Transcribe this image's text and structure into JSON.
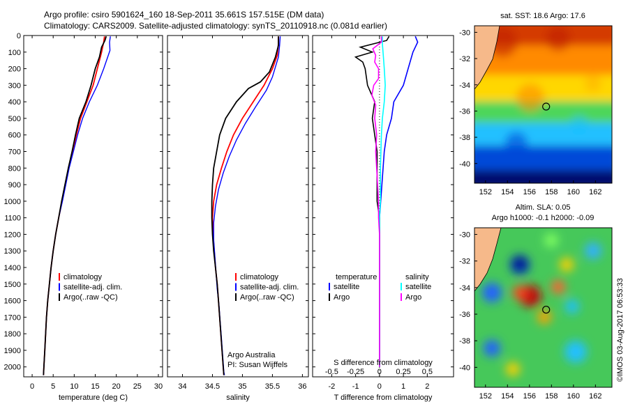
{
  "header": {
    "title_line1": "Argo profile: csiro 5901624_160 18-Sep-2011 35.661S 157.515E (DM data)",
    "title_line2": "Climatology: CARS2009. Satellite-adjusted climatology: synTS_20110918.nc (0.081d earlier)"
  },
  "colors": {
    "climatology": "#ff0000",
    "satellite": "#0000ff",
    "argo": "#000000",
    "salinity_satellite": "#00ffff",
    "salinity_argo": "#ff00ff",
    "land": "#f6b98a"
  },
  "chart_data": [
    {
      "type": "line",
      "panel": "temperature",
      "xlabel": "temperature (deg C)",
      "xlim": [
        -2,
        31
      ],
      "xticks": [
        0,
        5,
        10,
        15,
        20,
        25,
        30
      ],
      "ylim": [
        2060,
        0
      ],
      "yticks": [
        0,
        100,
        200,
        300,
        400,
        500,
        600,
        700,
        800,
        900,
        1000,
        1100,
        1200,
        1300,
        1400,
        1500,
        1600,
        1700,
        1800,
        1900,
        2000
      ],
      "legend": {
        "position": "lower-left",
        "entries": [
          "climatology",
          "satellite-adj. clim.",
          "Argo(..raw -QC)"
        ]
      },
      "series": [
        {
          "name": "climatology",
          "color_key": "climatology",
          "points": [
            [
              17.2,
              5
            ],
            [
              17,
              40
            ],
            [
              16.5,
              100
            ],
            [
              15.5,
              200
            ],
            [
              14.5,
              300
            ],
            [
              13,
              400
            ],
            [
              11.5,
              500
            ],
            [
              10.5,
              600
            ],
            [
              9.6,
              700
            ],
            [
              8.7,
              800
            ],
            [
              7.9,
              900
            ],
            [
              7.1,
              1000
            ],
            [
              6.3,
              1100
            ],
            [
              5.6,
              1200
            ],
            [
              5.0,
              1300
            ],
            [
              4.5,
              1400
            ],
            [
              4.1,
              1500
            ],
            [
              3.7,
              1600
            ],
            [
              3.4,
              1700
            ],
            [
              3.2,
              1800
            ],
            [
              3.0,
              1900
            ],
            [
              2.8,
              2000
            ],
            [
              2.7,
              2050
            ]
          ]
        },
        {
          "name": "satellite-adj. clim.",
          "color_key": "satellite",
          "points": [
            [
              18.6,
              5
            ],
            [
              18.4,
              40
            ],
            [
              18.5,
              90
            ],
            [
              17,
              200
            ],
            [
              15.5,
              300
            ],
            [
              13.6,
              400
            ],
            [
              12,
              500
            ],
            [
              10.8,
              600
            ],
            [
              9.8,
              700
            ],
            [
              8.8,
              800
            ],
            [
              8,
              900
            ],
            [
              7.2,
              1000
            ],
            [
              6.3,
              1100
            ],
            [
              5.6,
              1200
            ],
            [
              5,
              1300
            ],
            [
              4.5,
              1400
            ],
            [
              4.1,
              1500
            ],
            [
              3.7,
              1600
            ],
            [
              3.4,
              1700
            ],
            [
              3.2,
              1800
            ],
            [
              3,
              1900
            ],
            [
              2.8,
              2000
            ],
            [
              2.7,
              2050
            ]
          ]
        },
        {
          "name": "Argo(..raw -QC)",
          "color_key": "argo",
          "points": [
            [
              17.6,
              5
            ],
            [
              17.3,
              30
            ],
            [
              16.5,
              70
            ],
            [
              16,
              130
            ],
            [
              15,
              200
            ],
            [
              14,
              300
            ],
            [
              12.8,
              400
            ],
            [
              11.2,
              500
            ],
            [
              10.3,
              600
            ],
            [
              9.5,
              700
            ],
            [
              8.6,
              800
            ],
            [
              7.8,
              900
            ],
            [
              7,
              1000
            ],
            [
              6.3,
              1100
            ],
            [
              5.6,
              1200
            ],
            [
              5,
              1300
            ],
            [
              4.5,
              1400
            ],
            [
              4.1,
              1500
            ],
            [
              3.7,
              1600
            ],
            [
              3.4,
              1700
            ],
            [
              3.2,
              1800
            ],
            [
              3,
              1900
            ],
            [
              2.8,
              2000
            ],
            [
              2.7,
              2050
            ]
          ]
        }
      ]
    },
    {
      "type": "line",
      "panel": "salinity",
      "xlabel": "salinity",
      "xlim": [
        33.75,
        36.1
      ],
      "xticks": [
        34,
        34.5,
        35,
        35.5,
        36
      ],
      "legend": {
        "position": "lower-left",
        "entries": [
          "climatology",
          "satellite-adj. clim.",
          "Argo(..raw -QC)"
        ]
      },
      "annotation": [
        "Argo Australia",
        "PI: Susan Wijffels"
      ],
      "series": [
        {
          "name": "climatology",
          "color_key": "climatology",
          "points": [
            [
              35.6,
              5
            ],
            [
              35.6,
              50
            ],
            [
              35.58,
              120
            ],
            [
              35.5,
              200
            ],
            [
              35.36,
              300
            ],
            [
              35.18,
              400
            ],
            [
              35,
              500
            ],
            [
              34.85,
              600
            ],
            [
              34.74,
              700
            ],
            [
              34.65,
              800
            ],
            [
              34.57,
              900
            ],
            [
              34.52,
              1000
            ],
            [
              34.5,
              1100
            ],
            [
              34.51,
              1200
            ],
            [
              34.53,
              1300
            ],
            [
              34.55,
              1400
            ],
            [
              34.58,
              1500
            ],
            [
              34.6,
              1600
            ],
            [
              34.62,
              1700
            ],
            [
              34.64,
              1800
            ],
            [
              34.66,
              1900
            ],
            [
              34.68,
              2000
            ],
            [
              34.69,
              2050
            ]
          ]
        },
        {
          "name": "satellite-adj. clim.",
          "color_key": "satellite",
          "points": [
            [
              35.63,
              5
            ],
            [
              35.62,
              60
            ],
            [
              35.6,
              130
            ],
            [
              35.5,
              250
            ],
            [
              35.4,
              330
            ],
            [
              35.22,
              430
            ],
            [
              35.05,
              530
            ],
            [
              34.9,
              630
            ],
            [
              34.78,
              730
            ],
            [
              34.68,
              830
            ],
            [
              34.6,
              930
            ],
            [
              34.55,
              1030
            ],
            [
              34.52,
              1130
            ],
            [
              34.52,
              1230
            ],
            [
              34.54,
              1330
            ],
            [
              34.56,
              1430
            ],
            [
              34.58,
              1530
            ],
            [
              34.61,
              1630
            ],
            [
              34.63,
              1730
            ],
            [
              34.65,
              1830
            ],
            [
              34.67,
              1930
            ],
            [
              34.69,
              2030
            ],
            [
              34.7,
              2050
            ]
          ]
        },
        {
          "name": "Argo(..raw -QC)",
          "color_key": "argo",
          "points": [
            [
              35.6,
              5
            ],
            [
              35.6,
              60
            ],
            [
              35.55,
              130
            ],
            [
              35.45,
              220
            ],
            [
              35.3,
              280
            ],
            [
              35.1,
              320
            ],
            [
              34.9,
              400
            ],
            [
              34.72,
              500
            ],
            [
              34.62,
              600
            ],
            [
              34.57,
              700
            ],
            [
              34.52,
              800
            ],
            [
              34.5,
              900
            ],
            [
              34.49,
              1000
            ],
            [
              34.49,
              1100
            ],
            [
              34.5,
              1200
            ],
            [
              34.52,
              1300
            ],
            [
              34.55,
              1400
            ],
            [
              34.58,
              1500
            ],
            [
              34.6,
              1600
            ],
            [
              34.62,
              1700
            ],
            [
              34.64,
              1800
            ],
            [
              34.66,
              1900
            ],
            [
              34.68,
              2000
            ],
            [
              34.69,
              2050
            ]
          ]
        }
      ]
    },
    {
      "type": "line",
      "panel": "difference",
      "xlabel": "T difference from climatology",
      "xlabel_top": "S difference from climatology",
      "t_lim": [
        -2.8,
        3.1
      ],
      "t_ticks": [
        -2,
        -1,
        0,
        1,
        2
      ],
      "s_ticks": [
        -0.5,
        -0.25,
        0,
        0.25,
        0.5
      ],
      "s_ticks_text": [
        "-0.5",
        "-0.25",
        "0",
        "0.25",
        "0.5"
      ],
      "legend": {
        "position": "lower-left",
        "groups": [
          {
            "title": "temperature",
            "entries": [
              "satellite",
              "Argo"
            ]
          },
          {
            "title": "salinity",
            "entries": [
              "satellite",
              "Argo"
            ]
          }
        ]
      },
      "series": [
        {
          "name": "satellite",
          "quantity": "temperature",
          "color_key": "satellite",
          "points": [
            [
              1.5,
              5
            ],
            [
              1.6,
              40
            ],
            [
              1.4,
              100
            ],
            [
              1.2,
              200
            ],
            [
              1,
              300
            ],
            [
              0.6,
              400
            ],
            [
              0.5,
              500
            ],
            [
              0.3,
              600
            ],
            [
              0.2,
              700
            ],
            [
              0.15,
              800
            ],
            [
              0.1,
              900
            ],
            [
              0.05,
              1000
            ],
            [
              0,
              1100
            ],
            [
              0,
              1200
            ],
            [
              0,
              1300
            ],
            [
              0,
              1500
            ],
            [
              0,
              1700
            ],
            [
              0,
              2000
            ]
          ]
        },
        {
          "name": "Argo",
          "quantity": "temperature",
          "color_key": "argo",
          "points": [
            [
              0.4,
              5
            ],
            [
              0.3,
              30
            ],
            [
              -0.8,
              70
            ],
            [
              -0.3,
              100
            ],
            [
              -1,
              130
            ],
            [
              -0.7,
              160
            ],
            [
              -0.6,
              200
            ],
            [
              -0.5,
              300
            ],
            [
              -0.2,
              400
            ],
            [
              -0.3,
              500
            ],
            [
              -0.2,
              600
            ],
            [
              -0.1,
              700
            ],
            [
              -0.1,
              800
            ],
            [
              -0.1,
              900
            ],
            [
              -0.1,
              1000
            ],
            [
              0,
              1100
            ],
            [
              0,
              1300
            ],
            [
              0,
              1500
            ],
            [
              0,
              1700
            ],
            [
              0,
              2000
            ]
          ]
        },
        {
          "name": "satellite",
          "quantity": "salinity",
          "color_key": "salinity_satellite",
          "points": [
            [
              0.03,
              5
            ],
            [
              0.03,
              50
            ],
            [
              0.04,
              120
            ],
            [
              0.05,
              200
            ],
            [
              0.06,
              300
            ],
            [
              0.05,
              400
            ],
            [
              0.03,
              500
            ],
            [
              0.02,
              600
            ],
            [
              0.01,
              800
            ],
            [
              0.01,
              1000
            ],
            [
              0,
              1100
            ],
            [
              0,
              1300
            ],
            [
              0,
              1500
            ],
            [
              0,
              2000
            ]
          ]
        },
        {
          "name": "Argo",
          "quantity": "salinity",
          "color_key": "salinity_argo",
          "points": [
            [
              0.02,
              5
            ],
            [
              0.02,
              40
            ],
            [
              -0.07,
              80
            ],
            [
              -0.04,
              120
            ],
            [
              -0.05,
              160
            ],
            [
              -0.01,
              200
            ],
            [
              -0.01,
              260
            ],
            [
              -0.06,
              300
            ],
            [
              -0.08,
              360
            ],
            [
              -0.04,
              420
            ],
            [
              -0.05,
              500
            ],
            [
              -0.03,
              600
            ],
            [
              -0.04,
              700
            ],
            [
              -0.03,
              800
            ],
            [
              -0.02,
              900
            ],
            [
              -0.01,
              1000
            ],
            [
              -0.01,
              1100
            ],
            [
              0,
              1200
            ],
            [
              0,
              1300
            ],
            [
              0,
              1500
            ],
            [
              0,
              1700
            ],
            [
              0,
              2000
            ]
          ]
        }
      ]
    }
  ],
  "maps": {
    "lon_ticks": [
      "152",
      "154",
      "156",
      "158",
      "160",
      "162"
    ],
    "lat_ticks": [
      "-30",
      "-32",
      "-34",
      "-36",
      "-38",
      "-40"
    ],
    "lon_range": [
      151,
      163.5
    ],
    "lat_range": [
      -41.5,
      -29.5
    ],
    "profile_location": {
      "lon": 157.515,
      "lat": -35.661
    },
    "sst": {
      "title": "sat. SST: 18.6 Argo: 17.6",
      "bands": [
        {
          "lat": -30,
          "color": "#d43a00"
        },
        {
          "lat": -32,
          "color": "#ff8a00"
        },
        {
          "lat": -34.5,
          "color": "#ffd700"
        },
        {
          "lat": -36,
          "color": "#4dd65a"
        },
        {
          "lat": -37.8,
          "color": "#20c0ff"
        },
        {
          "lat": -39.5,
          "color": "#0048d8"
        },
        {
          "lat": -41.5,
          "color": "#00106e"
        }
      ]
    },
    "sla": {
      "title_line1": "Altim. SLA: 0.05",
      "title_line2": "Argo h1000: -0.1 h2000: -0.09"
    }
  },
  "footer": {
    "credit": "©IMOS 03-Aug-2017 06:53:33"
  }
}
